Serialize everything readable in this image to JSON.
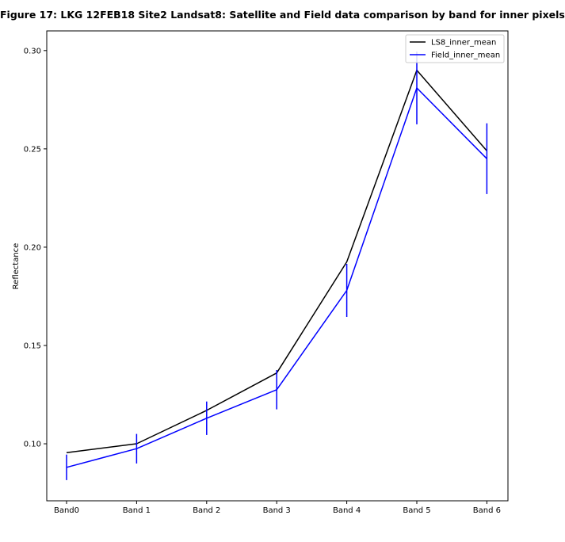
{
  "chart_data": {
    "type": "line",
    "title": "Figure 17: LKG 12FEB18 Site2 Landsat8: Satellite and Field data comparison by band for inner pixels",
    "xlabel": "",
    "ylabel": "Reflectance",
    "categories": [
      "Band0",
      "Band 1",
      "Band 2",
      "Band 3",
      "Band 4",
      "Band 5",
      "Band 6"
    ],
    "ylim": [
      0.071,
      0.31
    ],
    "yticks": [
      0.1,
      0.15,
      0.2,
      0.25,
      0.3
    ],
    "ytick_labels": [
      "0.10",
      "0.15",
      "0.20",
      "0.25",
      "0.30"
    ],
    "grid": false,
    "legend_position": "top-right",
    "series": [
      {
        "name": "LS8_inner_mean",
        "color": "#000000",
        "values": [
          0.0955,
          0.1,
          0.117,
          0.136,
          0.1925,
          0.29,
          0.249
        ]
      },
      {
        "name": "Field_inner_mean",
        "color": "#0000ff",
        "values": [
          0.088,
          0.0975,
          0.113,
          0.1275,
          0.178,
          0.281,
          0.245
        ],
        "error": [
          0.0065,
          0.0075,
          0.0085,
          0.01,
          0.0135,
          0.0185,
          0.018
        ]
      }
    ]
  }
}
